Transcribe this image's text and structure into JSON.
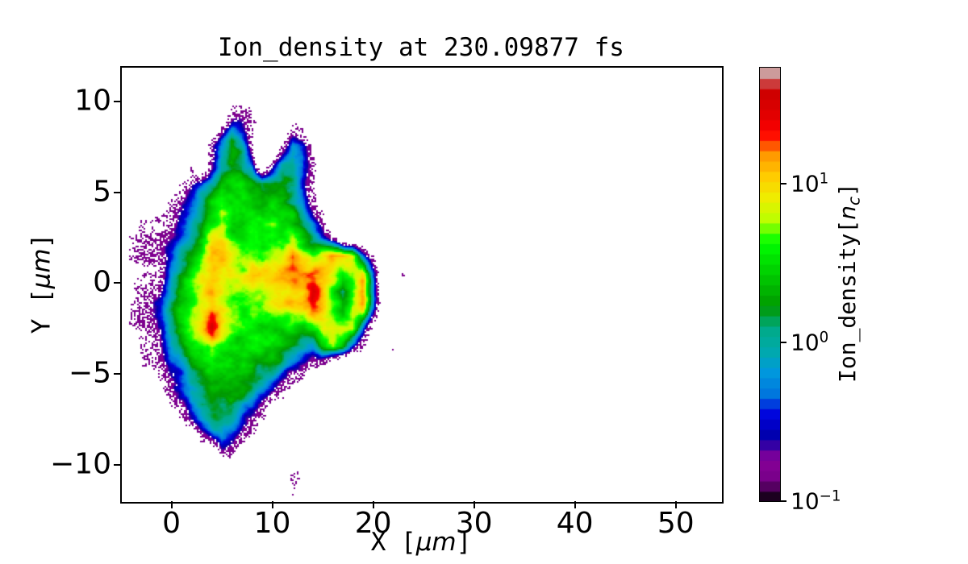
{
  "figure": {
    "title": "Ion_density at 230.09877 fs",
    "xlabel": {
      "prefix": "X [",
      "unit": "μm",
      "suffix": "]"
    },
    "ylabel": {
      "prefix": "Y [",
      "unit": "μm",
      "suffix": "]"
    },
    "colorbar_label": {
      "prefix": "Ion_density[",
      "symbol": "n",
      "subscript": "c",
      "suffix": "]"
    },
    "background_color": "#ffffff",
    "axis_color": "#000000"
  },
  "chart_data": {
    "type": "heatmap",
    "title": "Ion_density at 230.09877 fs",
    "xlabel": "X [μm]",
    "ylabel": "Y [μm]",
    "xlim": [
      -5,
      54.5
    ],
    "ylim": [
      -12,
      11.9
    ],
    "x_ticks": [
      0,
      10,
      20,
      30,
      40,
      50
    ],
    "y_ticks": [
      10,
      5,
      0,
      -5,
      -10
    ],
    "grid": false,
    "colorbar": {
      "label": "Ion_density[n_c]",
      "scale": "log10",
      "tick_exponents": [
        1,
        0,
        -1
      ],
      "vmin": 0.1,
      "vmax": 54,
      "colormap": "nipy_spectral",
      "n_bands": 42,
      "position": "right"
    },
    "density_grid": {
      "description": "Coarse log10(ion density / n_c) field sampled on a 1 μm grid; null = empty (white).",
      "x_start": -5,
      "x_step": 1,
      "n_cols": 32,
      "y_start": 11.5,
      "y_step": -1,
      "n_rows": 24,
      "values": [
        [
          null,
          null,
          null,
          null,
          null,
          null,
          null,
          null,
          null,
          null,
          null,
          null,
          null,
          null,
          null,
          null,
          null,
          null,
          null,
          null,
          null,
          null,
          null,
          null,
          null,
          null,
          null,
          null,
          null,
          null,
          null,
          null
        ],
        [
          null,
          null,
          null,
          null,
          null,
          null,
          null,
          null,
          null,
          null,
          null,
          null,
          null,
          null,
          null,
          null,
          null,
          null,
          null,
          null,
          null,
          null,
          null,
          null,
          null,
          null,
          null,
          null,
          null,
          null,
          null,
          null
        ],
        [
          null,
          null,
          null,
          null,
          null,
          null,
          null,
          null,
          null,
          null,
          null,
          -1.0,
          -0.85,
          -1.1,
          null,
          null,
          null,
          null,
          null,
          null,
          null,
          null,
          null,
          null,
          null,
          null,
          null,
          null,
          null,
          null,
          null,
          null
        ],
        [
          null,
          null,
          null,
          null,
          null,
          null,
          null,
          null,
          null,
          null,
          -0.9,
          -0.2,
          -0.6,
          -1.05,
          null,
          null,
          null,
          -0.7,
          -1.0,
          null,
          null,
          null,
          null,
          null,
          null,
          null,
          null,
          null,
          null,
          null,
          null,
          null
        ],
        [
          null,
          null,
          null,
          null,
          null,
          null,
          null,
          null,
          null,
          -1.0,
          -0.3,
          0.3,
          -0.1,
          -0.9,
          null,
          null,
          -1.0,
          -0.2,
          -0.5,
          -1.1,
          null,
          null,
          null,
          null,
          null,
          null,
          null,
          null,
          null,
          null,
          null,
          null
        ],
        [
          null,
          null,
          null,
          null,
          null,
          null,
          null,
          -1.1,
          null,
          -0.6,
          0.2,
          0.4,
          0.2,
          -0.4,
          null,
          -0.8,
          0.0,
          0.2,
          -0.2,
          -0.9,
          null,
          null,
          null,
          null,
          null,
          null,
          null,
          null,
          null,
          null,
          null,
          null
        ],
        [
          null,
          null,
          null,
          null,
          null,
          null,
          -1.1,
          -0.8,
          -0.4,
          0.0,
          0.4,
          0.5,
          0.4,
          0.2,
          0.0,
          0.2,
          0.3,
          0.1,
          -0.4,
          -1.0,
          null,
          null,
          null,
          null,
          null,
          null,
          null,
          null,
          null,
          null,
          null,
          null
        ],
        [
          null,
          null,
          null,
          null,
          null,
          -1.1,
          -0.9,
          -0.5,
          0.0,
          0.4,
          0.6,
          0.5,
          0.5,
          0.4,
          0.3,
          0.4,
          0.4,
          0.2,
          -0.2,
          -0.8,
          -1.1,
          null,
          null,
          null,
          null,
          null,
          null,
          null,
          null,
          null,
          null,
          null
        ],
        [
          null,
          null,
          -1.1,
          -1.05,
          -1.0,
          -0.9,
          -0.5,
          -0.1,
          0.3,
          0.7,
          0.9,
          0.5,
          0.4,
          0.5,
          0.4,
          0.5,
          0.4,
          0.3,
          0.0,
          -0.5,
          -1.0,
          null,
          null,
          null,
          null,
          null,
          null,
          null,
          null,
          null,
          null,
          null
        ],
        [
          null,
          -1.1,
          -1.05,
          -1.0,
          -1.0,
          -0.7,
          -0.2,
          0.2,
          0.5,
          1.0,
          1.0,
          0.6,
          0.5,
          0.6,
          0.5,
          0.6,
          0.5,
          0.7,
          0.3,
          -0.1,
          -0.6,
          -1.1,
          null,
          null,
          null,
          null,
          -1.15,
          null,
          -1.18,
          null,
          null,
          null
        ],
        [
          null,
          -1.05,
          -1.0,
          -1.0,
          -0.9,
          -0.4,
          0.1,
          0.4,
          0.8,
          1.1,
          1.0,
          0.8,
          0.7,
          0.8,
          0.7,
          0.8,
          0.9,
          1.3,
          0.9,
          0.6,
          0.9,
          1.1,
          1.15,
          1.0,
          -0.2,
          -1.1,
          null,
          -1.16,
          null,
          null,
          -1.19,
          null
        ],
        [
          null,
          -1.1,
          -1.0,
          -0.95,
          -0.8,
          -0.1,
          0.3,
          0.6,
          0.9,
          1.1,
          1.0,
          0.9,
          0.8,
          0.9,
          0.8,
          0.9,
          1.0,
          1.1,
          1.2,
          1.2,
          1.0,
          0.8,
          0.5,
          0.7,
          1.1,
          -0.3,
          null,
          null,
          -1.17,
          null,
          null,
          null
        ],
        [
          null,
          -1.1,
          -1.05,
          -0.95,
          -0.7,
          0.0,
          0.4,
          0.7,
          1.0,
          1.2,
          1.0,
          0.9,
          0.85,
          0.9,
          0.85,
          0.9,
          0.9,
          1.0,
          1.1,
          1.45,
          0.9,
          0.5,
          0.1,
          0.6,
          1.1,
          -0.3,
          null,
          -1.16,
          null,
          -1.18,
          null,
          null
        ],
        [
          null,
          -1.1,
          -1.0,
          -0.9,
          -0.5,
          0.1,
          0.5,
          0.8,
          1.0,
          1.3,
          1.1,
          0.9,
          0.8,
          0.85,
          0.8,
          0.85,
          0.9,
          0.95,
          1.0,
          1.3,
          1.0,
          0.7,
          0.4,
          0.8,
          1.05,
          -0.4,
          null,
          null,
          -1.17,
          null,
          null,
          null
        ],
        [
          null,
          -1.05,
          -1.0,
          -0.9,
          -0.6,
          0.0,
          0.4,
          0.7,
          0.9,
          1.4,
          1.0,
          0.8,
          0.7,
          0.7,
          0.6,
          0.7,
          0.6,
          0.7,
          0.6,
          0.7,
          1.0,
          1.05,
          1.0,
          0.8,
          -0.2,
          -1.1,
          -1.16,
          null,
          null,
          -1.19,
          null,
          null
        ],
        [
          null,
          null,
          -1.1,
          -1.05,
          -0.7,
          -0.2,
          0.2,
          0.5,
          0.6,
          0.9,
          0.7,
          0.6,
          0.5,
          0.6,
          0.5,
          0.5,
          0.4,
          0.3,
          0.1,
          -0.2,
          0.3,
          0.6,
          0.2,
          -0.6,
          -1.1,
          null,
          null,
          -1.17,
          null,
          null,
          null,
          null
        ],
        [
          null,
          null,
          -1.1,
          -1.05,
          -0.9,
          -0.5,
          -0.1,
          0.3,
          0.4,
          0.6,
          0.5,
          0.4,
          0.4,
          0.3,
          0.2,
          0.1,
          0.0,
          -0.3,
          -0.6,
          -1.0,
          -1.1,
          null,
          null,
          null,
          null,
          -1.18,
          null,
          -1.16,
          null,
          null,
          null,
          null
        ],
        [
          null,
          null,
          null,
          null,
          -1.1,
          -0.8,
          -0.4,
          0.0,
          0.2,
          0.4,
          0.3,
          0.3,
          0.2,
          0.1,
          -0.1,
          -0.4,
          -0.8,
          -1.05,
          -1.1,
          null,
          null,
          null,
          null,
          null,
          null,
          null,
          null,
          null,
          null,
          null,
          null,
          null
        ],
        [
          null,
          null,
          null,
          null,
          null,
          -1.1,
          -0.7,
          -0.2,
          0.1,
          0.2,
          0.2,
          0.3,
          0.1,
          -0.2,
          -0.6,
          -1.0,
          -1.1,
          null,
          null,
          null,
          null,
          null,
          null,
          null,
          null,
          null,
          null,
          null,
          null,
          null,
          null,
          null
        ],
        [
          null,
          null,
          null,
          null,
          null,
          null,
          -1.1,
          -0.7,
          -0.2,
          0.0,
          0.1,
          0.0,
          -0.3,
          -0.8,
          -1.1,
          null,
          null,
          null,
          null,
          null,
          null,
          null,
          null,
          null,
          null,
          null,
          null,
          null,
          null,
          null,
          null,
          null
        ],
        [
          null,
          null,
          null,
          null,
          null,
          null,
          null,
          null,
          -1.0,
          -0.5,
          -0.2,
          -0.4,
          -0.9,
          -1.1,
          null,
          -1.1,
          null,
          null,
          null,
          null,
          null,
          null,
          null,
          null,
          null,
          null,
          null,
          null,
          null,
          null,
          null,
          null
        ],
        [
          null,
          null,
          null,
          null,
          null,
          null,
          null,
          null,
          null,
          null,
          -1.0,
          -1.05,
          -1.1,
          null,
          -1.1,
          null,
          -1.15,
          null,
          null,
          null,
          null,
          null,
          null,
          null,
          null,
          null,
          null,
          null,
          null,
          null,
          null,
          null
        ],
        [
          null,
          null,
          null,
          null,
          null,
          null,
          null,
          null,
          null,
          null,
          null,
          null,
          null,
          null,
          null,
          -1.1,
          null,
          -1.1,
          -1.15,
          null,
          null,
          null,
          null,
          null,
          null,
          null,
          null,
          null,
          null,
          null,
          null,
          null
        ],
        [
          null,
          null,
          null,
          null,
          null,
          null,
          null,
          null,
          null,
          null,
          null,
          null,
          null,
          null,
          null,
          null,
          null,
          -1.2,
          null,
          null,
          null,
          null,
          null,
          null,
          null,
          null,
          null,
          null,
          null,
          null,
          null,
          null
        ]
      ]
    }
  }
}
